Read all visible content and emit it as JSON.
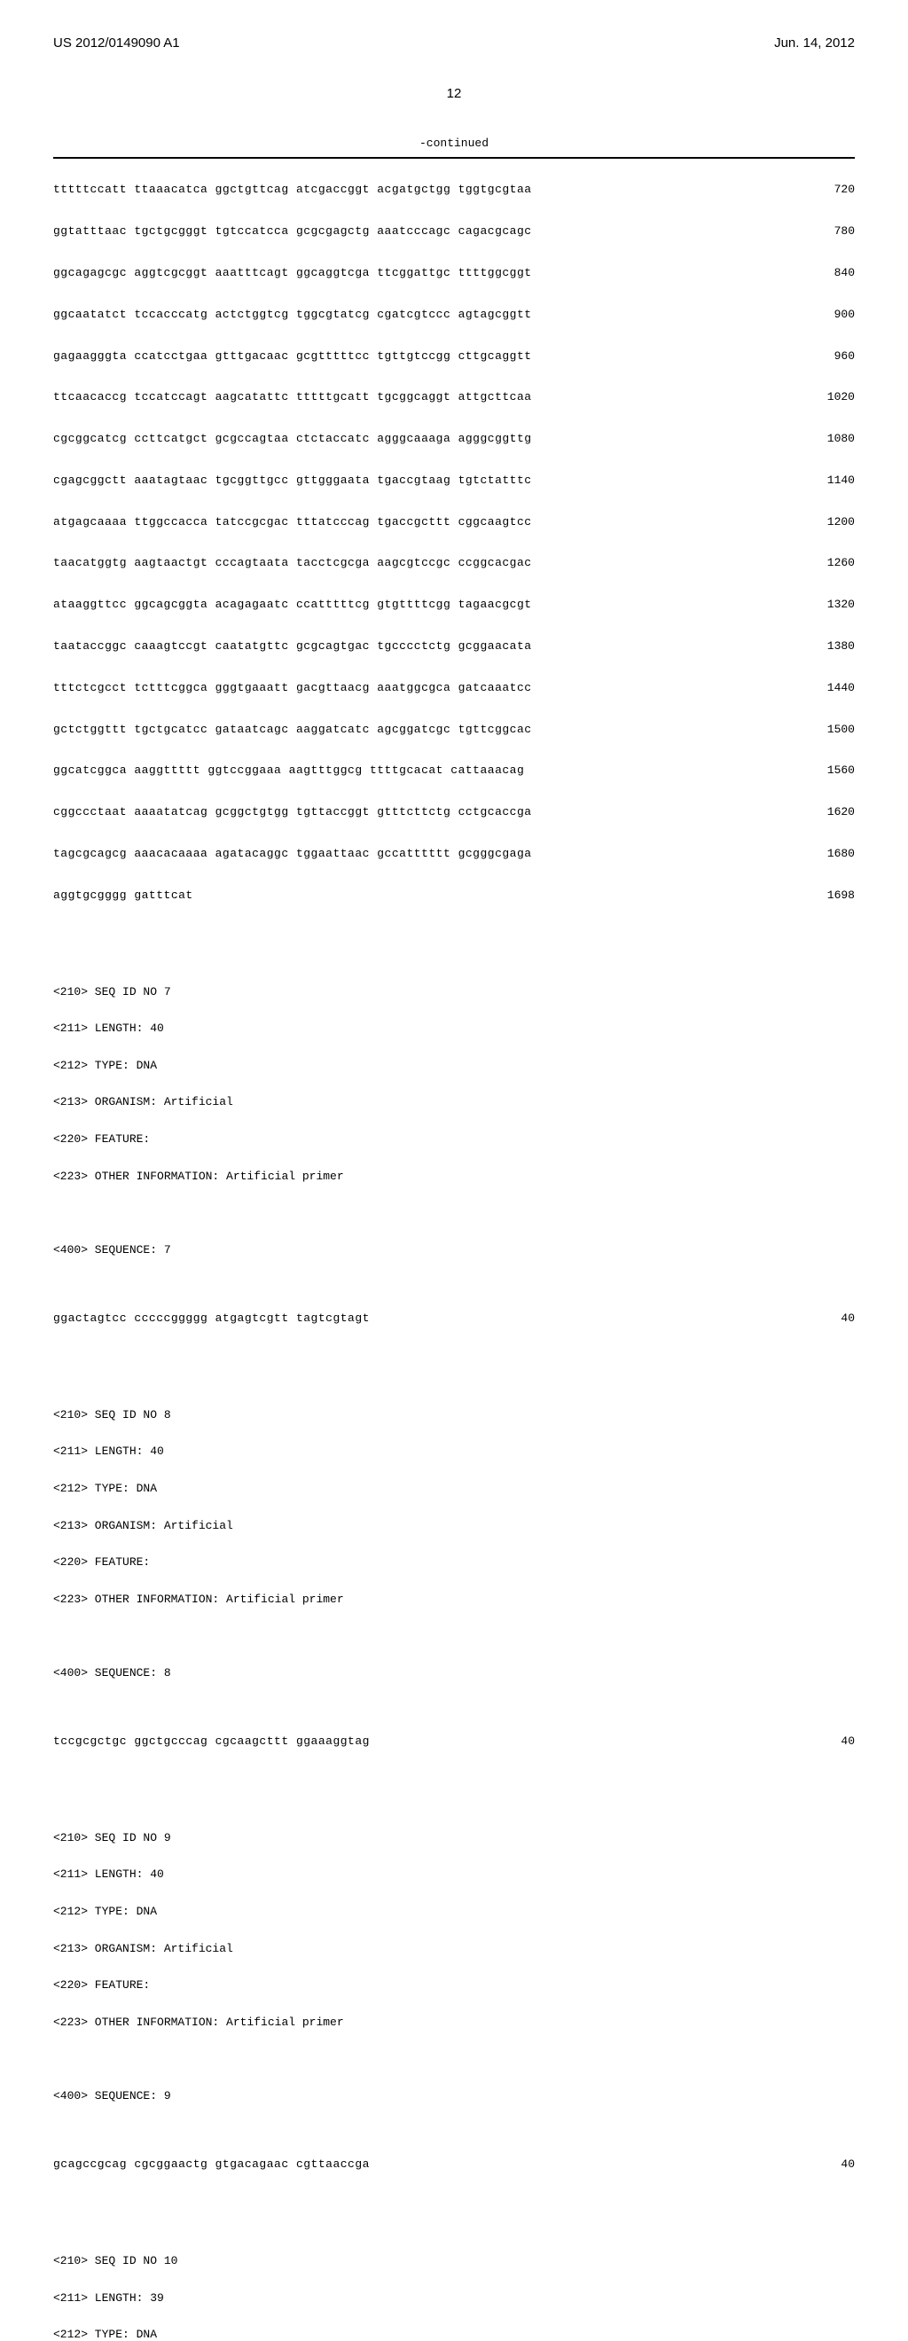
{
  "header": {
    "patent_number": "US 2012/0149090 A1",
    "date": "Jun. 14, 2012"
  },
  "page_number": "12",
  "continued_label": "-continued",
  "sequence_lines": [
    {
      "text": "tttttccatt ttaaacatca ggctgttcag atcgaccggt acgatgctgg tggtgcgtaa",
      "num": "720"
    },
    {
      "text": "ggtatttaac tgctgcgggt tgtccatcca gcgcgagctg aaatcccagc cagacgcagc",
      "num": "780"
    },
    {
      "text": "ggcagagcgc aggtcgcggt aaatttcagt ggcaggtcga ttcggattgc ttttggcggt",
      "num": "840"
    },
    {
      "text": "ggcaatatct tccacccatg actctggtcg tggcgtatcg cgatcgtccc agtagcggtt",
      "num": "900"
    },
    {
      "text": "gagaagggta ccatcctgaa gtttgacaac gcgtttttcc tgttgtccgg cttgcaggtt",
      "num": "960"
    },
    {
      "text": "ttcaacaccg tccatccagt aagcatattc tttttgcatt tgcggcaggt attgcttcaa",
      "num": "1020"
    },
    {
      "text": "cgcggcatcg ccttcatgct gcgccagtaa ctctaccatc agggcaaaga agggcggttg",
      "num": "1080"
    },
    {
      "text": "cgagcggctt aaatagtaac tgcggttgcc gttgggaata tgaccgtaag tgtctatttc",
      "num": "1140"
    },
    {
      "text": "atgagcaaaa ttggccacca tatccgcgac tttatcccag tgaccgcttt cggcaagtcc",
      "num": "1200"
    },
    {
      "text": "taacatggtg aagtaactgt cccagtaata tacctcgcga aagcgtccgc ccggcacgac",
      "num": "1260"
    },
    {
      "text": "ataaggttcc ggcagcggta acagagaatc ccatttttcg gtgttttcgg tagaacgcgt",
      "num": "1320"
    },
    {
      "text": "taataccggc caaagtccgt caatatgttc gcgcagtgac tgcccctctg gcggaacata",
      "num": "1380"
    },
    {
      "text": "tttctcgcct tctttcggca gggtgaaatt gacgttaacg aaatggcgca gatcaaatcc",
      "num": "1440"
    },
    {
      "text": "gctctggttt tgctgcatcc gataatcagc aaggatcatc agcggatcgc tgttcggcac",
      "num": "1500"
    },
    {
      "text": "ggcatcggca aaggttttt ggtccggaaa aagtttggcg ttttgcacat cattaaacag",
      "num": "1560"
    },
    {
      "text": "cggccctaat aaaatatcag gcggctgtgg tgttaccggt gtttcttctg cctgcaccga",
      "num": "1620"
    },
    {
      "text": "tagcgcagcg aaacacaaaa agatacaggc tggaattaac gccatttttt gcgggcgaga",
      "num": "1680"
    },
    {
      "text": "aggtgcgggg gatttcat",
      "num": "1698"
    }
  ],
  "seq7": {
    "id": "<210> SEQ ID NO 7",
    "length": "<211> LENGTH: 40",
    "type": "<212> TYPE: DNA",
    "organism": "<213> ORGANISM: Artificial",
    "feature": "<220> FEATURE:",
    "other": "<223> OTHER INFORMATION: Artificial primer",
    "seq_label": "<400> SEQUENCE: 7",
    "sequence": "ggactagtcc cccccggggg atgagtcgtt tagtcgtagt",
    "num": "40"
  },
  "seq8": {
    "id": "<210> SEQ ID NO 8",
    "length": "<211> LENGTH: 40",
    "type": "<212> TYPE: DNA",
    "organism": "<213> ORGANISM: Artificial",
    "feature": "<220> FEATURE:",
    "other": "<223> OTHER INFORMATION: Artificial primer",
    "seq_label": "<400> SEQUENCE: 8",
    "sequence": "tccgcgctgc ggctgcccag cgcaagcttt ggaaaggtag",
    "num": "40"
  },
  "seq9": {
    "id": "<210> SEQ ID NO 9",
    "length": "<211> LENGTH: 40",
    "type": "<212> TYPE: DNA",
    "organism": "<213> ORGANISM: Artificial",
    "feature": "<220> FEATURE:",
    "other": "<223> OTHER INFORMATION: Artificial primer",
    "seq_label": "<400> SEQUENCE: 9",
    "sequence": "gcagccgcag cgcggaactg gtgacagaac cgttaaccga",
    "num": "40"
  },
  "seq10": {
    "id": "<210> SEQ ID NO 10",
    "length": "<211> LENGTH: 39",
    "type": "<212> TYPE: DNA"
  }
}
